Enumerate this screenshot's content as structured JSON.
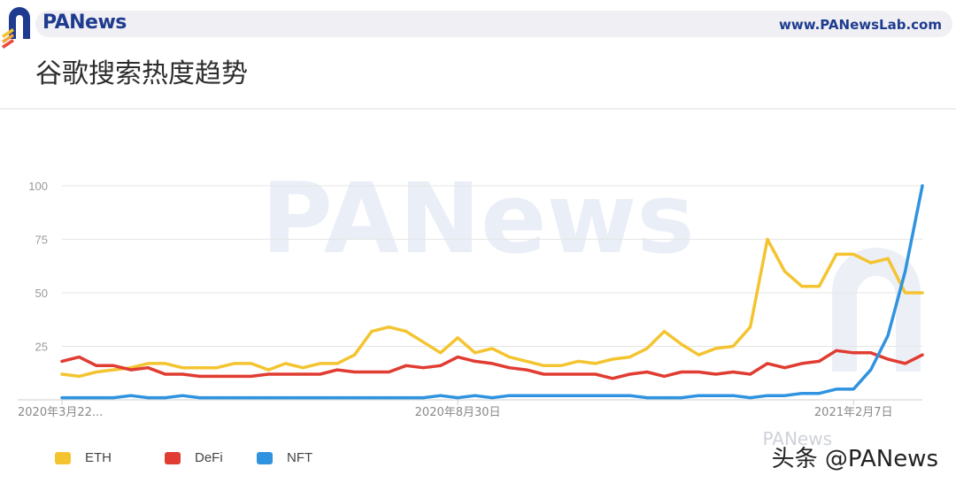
{
  "header": {
    "brand": "PANews",
    "url": "www.PANewsLab.com"
  },
  "page_title": "谷歌搜索热度趋势",
  "watermark": {
    "chart_text": "PANews",
    "faint_text": "PANews",
    "credit": "头条 @PANews"
  },
  "colors": {
    "brand_blue": "#1f3b8f",
    "eth": "#f4c430",
    "defi": "#e03c31",
    "nft": "#2f93e0",
    "grid": "#e6e6e6"
  },
  "chart_data": {
    "type": "line",
    "title": "",
    "xlabel": "",
    "ylabel": "",
    "ylim": [
      0,
      100
    ],
    "yticks": [
      25,
      50,
      75,
      100
    ],
    "x_tick_labels": [
      {
        "index": 0,
        "label": "2020年3月22..."
      },
      {
        "index": 23,
        "label": "2020年8月30日"
      },
      {
        "index": 46,
        "label": "2021年2月7日"
      }
    ],
    "grid": true,
    "legend_position": "bottom-left",
    "series": [
      {
        "name": "ETH",
        "color": "#f4c430",
        "values": [
          12,
          11,
          13,
          14,
          15,
          17,
          17,
          15,
          15,
          15,
          17,
          17,
          14,
          17,
          15,
          17,
          17,
          21,
          32,
          34,
          32,
          27,
          22,
          29,
          22,
          24,
          20,
          18,
          16,
          16,
          18,
          17,
          19,
          20,
          24,
          32,
          26,
          21,
          24,
          25,
          34,
          75,
          60,
          53,
          53,
          68,
          68,
          64,
          66,
          50,
          50
        ]
      },
      {
        "name": "DeFi",
        "color": "#e03c31",
        "values": [
          18,
          20,
          16,
          16,
          14,
          15,
          12,
          12,
          11,
          11,
          11,
          11,
          12,
          12,
          12,
          12,
          14,
          13,
          13,
          13,
          16,
          15,
          16,
          20,
          18,
          17,
          15,
          14,
          12,
          12,
          12,
          12,
          10,
          12,
          13,
          11,
          13,
          13,
          12,
          13,
          12,
          17,
          15,
          17,
          18,
          23,
          22,
          22,
          19,
          17,
          21
        ]
      },
      {
        "name": "NFT",
        "color": "#2f93e0",
        "values": [
          1,
          1,
          1,
          1,
          2,
          1,
          1,
          2,
          1,
          1,
          1,
          1,
          1,
          1,
          1,
          1,
          1,
          1,
          1,
          1,
          1,
          1,
          2,
          1,
          2,
          1,
          2,
          2,
          2,
          2,
          2,
          2,
          2,
          2,
          1,
          1,
          1,
          2,
          2,
          2,
          1,
          2,
          2,
          3,
          3,
          5,
          5,
          14,
          30,
          60,
          100
        ]
      }
    ]
  }
}
